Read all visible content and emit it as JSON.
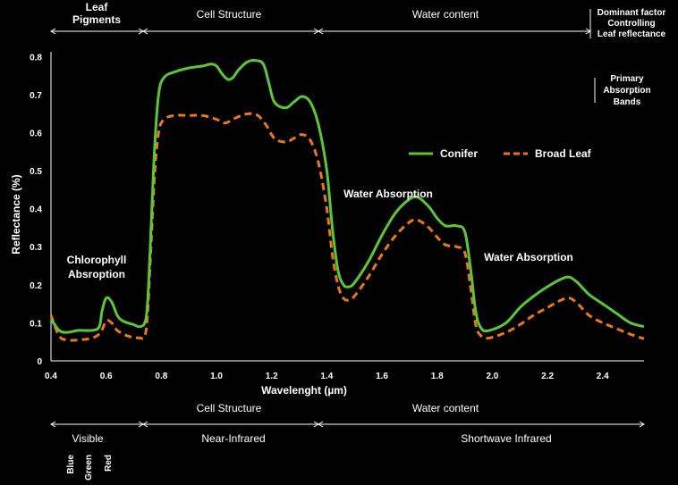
{
  "chart_data": {
    "type": "line",
    "xlabel": "Wavelenght (µm)",
    "ylabel": "Reflectance (%)",
    "xlim": [
      0.4,
      2.55
    ],
    "ylim": [
      0,
      0.85
    ],
    "x_ticks": [
      "0.4",
      "0.6",
      "0.8",
      "1.0",
      "1.2",
      "1.4",
      "1.6",
      "1.8",
      "2.0",
      "2.2",
      "2.4"
    ],
    "y_ticks": [
      "0",
      "0.1",
      "0.2",
      "0.3",
      "0.4",
      "0.5",
      "0.6",
      "0.7",
      "0.8"
    ],
    "grid": false,
    "legend_position": "right",
    "series": [
      {
        "name": "Conifer",
        "color": "#5cc63a",
        "style": "solid",
        "points": [
          [
            0.4,
            0.11
          ],
          [
            0.43,
            0.08
          ],
          [
            0.46,
            0.075
          ],
          [
            0.5,
            0.08
          ],
          [
            0.55,
            0.08
          ],
          [
            0.575,
            0.09
          ],
          [
            0.585,
            0.13
          ],
          [
            0.6,
            0.165
          ],
          [
            0.62,
            0.155
          ],
          [
            0.64,
            0.12
          ],
          [
            0.66,
            0.105
          ],
          [
            0.7,
            0.095
          ],
          [
            0.72,
            0.09
          ],
          [
            0.74,
            0.1
          ],
          [
            0.75,
            0.15
          ],
          [
            0.76,
            0.3
          ],
          [
            0.775,
            0.55
          ],
          [
            0.79,
            0.7
          ],
          [
            0.81,
            0.745
          ],
          [
            0.85,
            0.76
          ],
          [
            0.9,
            0.77
          ],
          [
            0.95,
            0.775
          ],
          [
            0.98,
            0.78
          ],
          [
            1.0,
            0.775
          ],
          [
            1.02,
            0.755
          ],
          [
            1.04,
            0.74
          ],
          [
            1.06,
            0.745
          ],
          [
            1.08,
            0.765
          ],
          [
            1.11,
            0.785
          ],
          [
            1.14,
            0.79
          ],
          [
            1.17,
            0.78
          ],
          [
            1.19,
            0.73
          ],
          [
            1.21,
            0.68
          ],
          [
            1.25,
            0.665
          ],
          [
            1.28,
            0.68
          ],
          [
            1.31,
            0.695
          ],
          [
            1.34,
            0.68
          ],
          [
            1.37,
            0.62
          ],
          [
            1.4,
            0.5
          ],
          [
            1.42,
            0.35
          ],
          [
            1.44,
            0.24
          ],
          [
            1.46,
            0.2
          ],
          [
            1.48,
            0.195
          ],
          [
            1.5,
            0.205
          ],
          [
            1.55,
            0.26
          ],
          [
            1.6,
            0.33
          ],
          [
            1.65,
            0.39
          ],
          [
            1.7,
            0.425
          ],
          [
            1.73,
            0.43
          ],
          [
            1.77,
            0.405
          ],
          [
            1.8,
            0.375
          ],
          [
            1.83,
            0.355
          ],
          [
            1.87,
            0.355
          ],
          [
            1.9,
            0.34
          ],
          [
            1.92,
            0.25
          ],
          [
            1.94,
            0.13
          ],
          [
            1.96,
            0.085
          ],
          [
            1.99,
            0.08
          ],
          [
            2.05,
            0.1
          ],
          [
            2.1,
            0.14
          ],
          [
            2.15,
            0.17
          ],
          [
            2.2,
            0.195
          ],
          [
            2.25,
            0.215
          ],
          [
            2.28,
            0.22
          ],
          [
            2.31,
            0.205
          ],
          [
            2.35,
            0.175
          ],
          [
            2.4,
            0.15
          ],
          [
            2.45,
            0.125
          ],
          [
            2.5,
            0.1
          ],
          [
            2.55,
            0.09
          ]
        ]
      },
      {
        "name": "Broad Leaf",
        "color": "#e8781a",
        "style": "dashed",
        "points": [
          [
            0.4,
            0.12
          ],
          [
            0.43,
            0.065
          ],
          [
            0.46,
            0.055
          ],
          [
            0.5,
            0.055
          ],
          [
            0.55,
            0.06
          ],
          [
            0.58,
            0.075
          ],
          [
            0.6,
            0.105
          ],
          [
            0.62,
            0.1
          ],
          [
            0.64,
            0.08
          ],
          [
            0.68,
            0.065
          ],
          [
            0.72,
            0.06
          ],
          [
            0.74,
            0.065
          ],
          [
            0.75,
            0.12
          ],
          [
            0.76,
            0.26
          ],
          [
            0.775,
            0.48
          ],
          [
            0.79,
            0.6
          ],
          [
            0.81,
            0.635
          ],
          [
            0.85,
            0.645
          ],
          [
            0.9,
            0.645
          ],
          [
            0.95,
            0.645
          ],
          [
            1.0,
            0.635
          ],
          [
            1.03,
            0.625
          ],
          [
            1.06,
            0.635
          ],
          [
            1.09,
            0.645
          ],
          [
            1.12,
            0.65
          ],
          [
            1.15,
            0.645
          ],
          [
            1.18,
            0.62
          ],
          [
            1.21,
            0.585
          ],
          [
            1.25,
            0.575
          ],
          [
            1.28,
            0.585
          ],
          [
            1.31,
            0.595
          ],
          [
            1.34,
            0.58
          ],
          [
            1.37,
            0.52
          ],
          [
            1.4,
            0.4
          ],
          [
            1.42,
            0.28
          ],
          [
            1.44,
            0.2
          ],
          [
            1.46,
            0.165
          ],
          [
            1.48,
            0.16
          ],
          [
            1.5,
            0.17
          ],
          [
            1.55,
            0.22
          ],
          [
            1.6,
            0.28
          ],
          [
            1.65,
            0.33
          ],
          [
            1.7,
            0.365
          ],
          [
            1.73,
            0.37
          ],
          [
            1.77,
            0.35
          ],
          [
            1.8,
            0.325
          ],
          [
            1.83,
            0.305
          ],
          [
            1.87,
            0.3
          ],
          [
            1.9,
            0.285
          ],
          [
            1.92,
            0.2
          ],
          [
            1.94,
            0.095
          ],
          [
            1.96,
            0.065
          ],
          [
            1.99,
            0.06
          ],
          [
            2.05,
            0.075
          ],
          [
            2.1,
            0.095
          ],
          [
            2.15,
            0.12
          ],
          [
            2.2,
            0.14
          ],
          [
            2.25,
            0.16
          ],
          [
            2.28,
            0.165
          ],
          [
            2.31,
            0.15
          ],
          [
            2.35,
            0.12
          ],
          [
            2.4,
            0.1
          ],
          [
            2.45,
            0.085
          ],
          [
            2.5,
            0.07
          ],
          [
            2.55,
            0.058
          ]
        ]
      }
    ],
    "annotations": {
      "chlorophyll": [
        "Chlorophyll",
        "Absroption"
      ],
      "water_absorption_1": "Water Absorption",
      "water_absorption_2": "Water Absorption"
    },
    "top_bands": {
      "leaf_pigments": [
        "Leaf",
        "Pigments"
      ],
      "cell_structure": "Cell Structure",
      "water_content": "Water content",
      "caption": [
        "Dominant factor",
        "Controlling",
        "Leaf reflectance"
      ]
    },
    "side_caption": [
      "Primary",
      "Absorption",
      "Bands"
    ],
    "bottom_bands": {
      "cell_structure": "Cell Structure",
      "water_content": "Water content",
      "visible": "Visible",
      "near_infrared": "Near-Infrared",
      "shortwave_infrared": "Shortwave Infrared",
      "colors": [
        "Blue",
        "Green",
        "Red"
      ]
    }
  }
}
